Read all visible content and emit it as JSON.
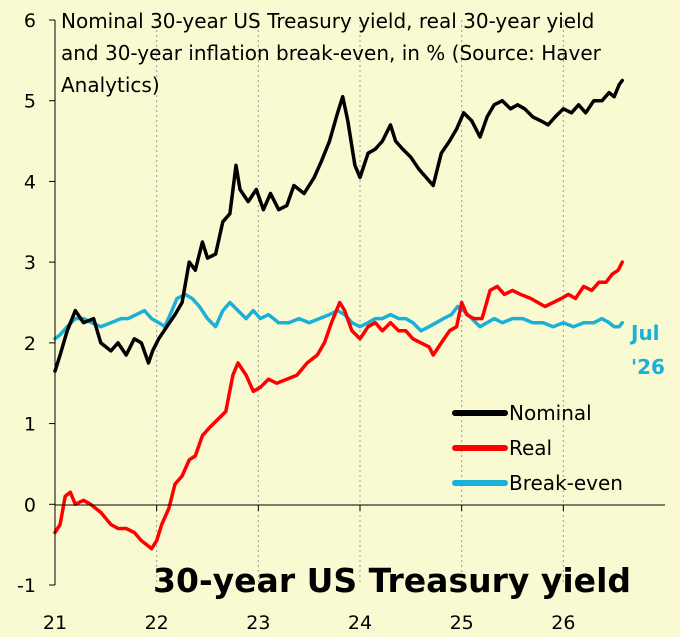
{
  "chart_data": {
    "type": "line",
    "title": "Nominal 30-year US Treasury yield, real 30-year yield and 30-year inflation break-even, in % (Source: Haver Analytics)",
    "title_lines": [
      "Nominal 30-year US Treasury yield, real 30-year yield",
      "and 30-year inflation break-even, in % (Source: Haver",
      "Analytics)"
    ],
    "big_title": "30-year US Treasury yield",
    "end_label": [
      "Jul",
      "'26"
    ],
    "xlim": [
      2021.0,
      2027.0
    ],
    "ylim": [
      -1,
      6
    ],
    "x_ticks": [
      2021,
      2022,
      2023,
      2024,
      2025,
      2026
    ],
    "x_tick_labels": [
      "21",
      "22",
      "23",
      "24",
      "25",
      "26"
    ],
    "y_ticks": [
      -1,
      0,
      1,
      2,
      3,
      4,
      5,
      6
    ],
    "y_tick_labels": [
      "-1",
      "0",
      "1",
      "2",
      "3",
      "4",
      "5",
      "6"
    ],
    "legend_position": "bottom-right",
    "series": [
      {
        "name": "Nominal",
        "color": "#000000",
        "points": [
          [
            2021.0,
            1.65
          ],
          [
            2021.05,
            1.85
          ],
          [
            2021.12,
            2.15
          ],
          [
            2021.2,
            2.4
          ],
          [
            2021.28,
            2.25
          ],
          [
            2021.38,
            2.3
          ],
          [
            2021.45,
            2.0
          ],
          [
            2021.55,
            1.9
          ],
          [
            2021.62,
            2.0
          ],
          [
            2021.7,
            1.85
          ],
          [
            2021.78,
            2.05
          ],
          [
            2021.85,
            2.0
          ],
          [
            2021.92,
            1.75
          ],
          [
            2021.96,
            1.9
          ],
          [
            2022.02,
            2.05
          ],
          [
            2022.1,
            2.2
          ],
          [
            2022.18,
            2.35
          ],
          [
            2022.25,
            2.5
          ],
          [
            2022.32,
            3.0
          ],
          [
            2022.38,
            2.9
          ],
          [
            2022.45,
            3.25
          ],
          [
            2022.5,
            3.05
          ],
          [
            2022.58,
            3.1
          ],
          [
            2022.65,
            3.5
          ],
          [
            2022.72,
            3.6
          ],
          [
            2022.78,
            4.2
          ],
          [
            2022.82,
            3.9
          ],
          [
            2022.9,
            3.75
          ],
          [
            2022.98,
            3.9
          ],
          [
            2023.05,
            3.65
          ],
          [
            2023.12,
            3.85
          ],
          [
            2023.2,
            3.65
          ],
          [
            2023.28,
            3.7
          ],
          [
            2023.35,
            3.95
          ],
          [
            2023.45,
            3.85
          ],
          [
            2023.55,
            4.05
          ],
          [
            2023.62,
            4.25
          ],
          [
            2023.7,
            4.5
          ],
          [
            2023.78,
            4.85
          ],
          [
            2023.83,
            5.05
          ],
          [
            2023.88,
            4.75
          ],
          [
            2023.95,
            4.2
          ],
          [
            2024.0,
            4.05
          ],
          [
            2024.08,
            4.35
          ],
          [
            2024.15,
            4.4
          ],
          [
            2024.22,
            4.5
          ],
          [
            2024.3,
            4.7
          ],
          [
            2024.35,
            4.5
          ],
          [
            2024.42,
            4.4
          ],
          [
            2024.5,
            4.3
          ],
          [
            2024.58,
            4.15
          ],
          [
            2024.65,
            4.05
          ],
          [
            2024.72,
            3.95
          ],
          [
            2024.8,
            4.35
          ],
          [
            2024.88,
            4.5
          ],
          [
            2024.95,
            4.65
          ],
          [
            2025.02,
            4.85
          ],
          [
            2025.1,
            4.75
          ],
          [
            2025.18,
            4.55
          ],
          [
            2025.25,
            4.8
          ],
          [
            2025.32,
            4.95
          ],
          [
            2025.4,
            5.0
          ],
          [
            2025.48,
            4.9
          ],
          [
            2025.55,
            4.95
          ],
          [
            2025.62,
            4.9
          ],
          [
            2025.7,
            4.8
          ],
          [
            2025.78,
            4.75
          ],
          [
            2025.85,
            4.7
          ],
          [
            2025.92,
            4.8
          ],
          [
            2026.0,
            4.9
          ],
          [
            2026.08,
            4.85
          ],
          [
            2026.15,
            4.95
          ],
          [
            2026.22,
            4.85
          ],
          [
            2026.3,
            5.0
          ],
          [
            2026.38,
            5.0
          ],
          [
            2026.45,
            5.1
          ],
          [
            2026.5,
            5.05
          ],
          [
            2026.55,
            5.2
          ],
          [
            2026.58,
            5.25
          ]
        ]
      },
      {
        "name": "Real",
        "color": "#ff0000",
        "points": [
          [
            2021.0,
            -0.35
          ],
          [
            2021.05,
            -0.25
          ],
          [
            2021.1,
            0.1
          ],
          [
            2021.15,
            0.15
          ],
          [
            2021.2,
            0.0
          ],
          [
            2021.28,
            0.05
          ],
          [
            2021.35,
            0.0
          ],
          [
            2021.45,
            -0.1
          ],
          [
            2021.55,
            -0.25
          ],
          [
            2021.62,
            -0.3
          ],
          [
            2021.7,
            -0.3
          ],
          [
            2021.78,
            -0.35
          ],
          [
            2021.85,
            -0.45
          ],
          [
            2021.9,
            -0.5
          ],
          [
            2021.95,
            -0.55
          ],
          [
            2022.0,
            -0.45
          ],
          [
            2022.05,
            -0.25
          ],
          [
            2022.12,
            -0.05
          ],
          [
            2022.18,
            0.25
          ],
          [
            2022.25,
            0.35
          ],
          [
            2022.32,
            0.55
          ],
          [
            2022.38,
            0.6
          ],
          [
            2022.45,
            0.85
          ],
          [
            2022.52,
            0.95
          ],
          [
            2022.6,
            1.05
          ],
          [
            2022.68,
            1.15
          ],
          [
            2022.75,
            1.6
          ],
          [
            2022.8,
            1.75
          ],
          [
            2022.88,
            1.6
          ],
          [
            2022.95,
            1.4
          ],
          [
            2023.02,
            1.45
          ],
          [
            2023.1,
            1.55
          ],
          [
            2023.18,
            1.5
          ],
          [
            2023.28,
            1.55
          ],
          [
            2023.38,
            1.6
          ],
          [
            2023.48,
            1.75
          ],
          [
            2023.58,
            1.85
          ],
          [
            2023.65,
            2.0
          ],
          [
            2023.72,
            2.25
          ],
          [
            2023.8,
            2.5
          ],
          [
            2023.85,
            2.4
          ],
          [
            2023.92,
            2.15
          ],
          [
            2024.0,
            2.05
          ],
          [
            2024.08,
            2.2
          ],
          [
            2024.15,
            2.25
          ],
          [
            2024.22,
            2.15
          ],
          [
            2024.3,
            2.25
          ],
          [
            2024.38,
            2.15
          ],
          [
            2024.45,
            2.15
          ],
          [
            2024.52,
            2.05
          ],
          [
            2024.6,
            2.0
          ],
          [
            2024.68,
            1.95
          ],
          [
            2024.72,
            1.85
          ],
          [
            2024.8,
            2.0
          ],
          [
            2024.88,
            2.15
          ],
          [
            2024.95,
            2.2
          ],
          [
            2025.0,
            2.5
          ],
          [
            2025.05,
            2.35
          ],
          [
            2025.12,
            2.3
          ],
          [
            2025.2,
            2.3
          ],
          [
            2025.28,
            2.65
          ],
          [
            2025.35,
            2.7
          ],
          [
            2025.42,
            2.6
          ],
          [
            2025.5,
            2.65
          ],
          [
            2025.58,
            2.6
          ],
          [
            2025.68,
            2.55
          ],
          [
            2025.75,
            2.5
          ],
          [
            2025.82,
            2.45
          ],
          [
            2025.9,
            2.5
          ],
          [
            2025.98,
            2.55
          ],
          [
            2026.05,
            2.6
          ],
          [
            2026.12,
            2.55
          ],
          [
            2026.2,
            2.7
          ],
          [
            2026.28,
            2.65
          ],
          [
            2026.35,
            2.75
          ],
          [
            2026.42,
            2.75
          ],
          [
            2026.48,
            2.85
          ],
          [
            2026.54,
            2.9
          ],
          [
            2026.58,
            3.0
          ]
        ]
      },
      {
        "name": "Break-even",
        "color": "#1ab0d8",
        "points": [
          [
            2021.0,
            2.05
          ],
          [
            2021.05,
            2.1
          ],
          [
            2021.12,
            2.2
          ],
          [
            2021.2,
            2.3
          ],
          [
            2021.28,
            2.3
          ],
          [
            2021.36,
            2.25
          ],
          [
            2021.45,
            2.2
          ],
          [
            2021.55,
            2.25
          ],
          [
            2021.65,
            2.3
          ],
          [
            2021.72,
            2.3
          ],
          [
            2021.8,
            2.35
          ],
          [
            2021.88,
            2.4
          ],
          [
            2021.95,
            2.3
          ],
          [
            2022.02,
            2.25
          ],
          [
            2022.08,
            2.2
          ],
          [
            2022.15,
            2.4
          ],
          [
            2022.2,
            2.55
          ],
          [
            2022.28,
            2.6
          ],
          [
            2022.35,
            2.55
          ],
          [
            2022.42,
            2.45
          ],
          [
            2022.5,
            2.3
          ],
          [
            2022.58,
            2.2
          ],
          [
            2022.65,
            2.4
          ],
          [
            2022.72,
            2.5
          ],
          [
            2022.8,
            2.4
          ],
          [
            2022.88,
            2.3
          ],
          [
            2022.95,
            2.4
          ],
          [
            2023.02,
            2.3
          ],
          [
            2023.1,
            2.35
          ],
          [
            2023.2,
            2.25
          ],
          [
            2023.3,
            2.25
          ],
          [
            2023.4,
            2.3
          ],
          [
            2023.5,
            2.25
          ],
          [
            2023.6,
            2.3
          ],
          [
            2023.7,
            2.35
          ],
          [
            2023.78,
            2.4
          ],
          [
            2023.85,
            2.35
          ],
          [
            2023.92,
            2.25
          ],
          [
            2024.0,
            2.2
          ],
          [
            2024.08,
            2.25
          ],
          [
            2024.15,
            2.3
          ],
          [
            2024.22,
            2.3
          ],
          [
            2024.3,
            2.35
          ],
          [
            2024.38,
            2.3
          ],
          [
            2024.45,
            2.3
          ],
          [
            2024.52,
            2.25
          ],
          [
            2024.6,
            2.15
          ],
          [
            2024.68,
            2.2
          ],
          [
            2024.75,
            2.25
          ],
          [
            2024.82,
            2.3
          ],
          [
            2024.9,
            2.35
          ],
          [
            2024.96,
            2.45
          ],
          [
            2025.02,
            2.4
          ],
          [
            2025.1,
            2.3
          ],
          [
            2025.18,
            2.2
          ],
          [
            2025.25,
            2.25
          ],
          [
            2025.32,
            2.3
          ],
          [
            2025.4,
            2.25
          ],
          [
            2025.5,
            2.3
          ],
          [
            2025.6,
            2.3
          ],
          [
            2025.7,
            2.25
          ],
          [
            2025.8,
            2.25
          ],
          [
            2025.9,
            2.2
          ],
          [
            2026.0,
            2.25
          ],
          [
            2026.1,
            2.2
          ],
          [
            2026.2,
            2.25
          ],
          [
            2026.3,
            2.25
          ],
          [
            2026.38,
            2.3
          ],
          [
            2026.45,
            2.25
          ],
          [
            2026.5,
            2.2
          ],
          [
            2026.55,
            2.2
          ],
          [
            2026.58,
            2.25
          ]
        ]
      }
    ]
  }
}
